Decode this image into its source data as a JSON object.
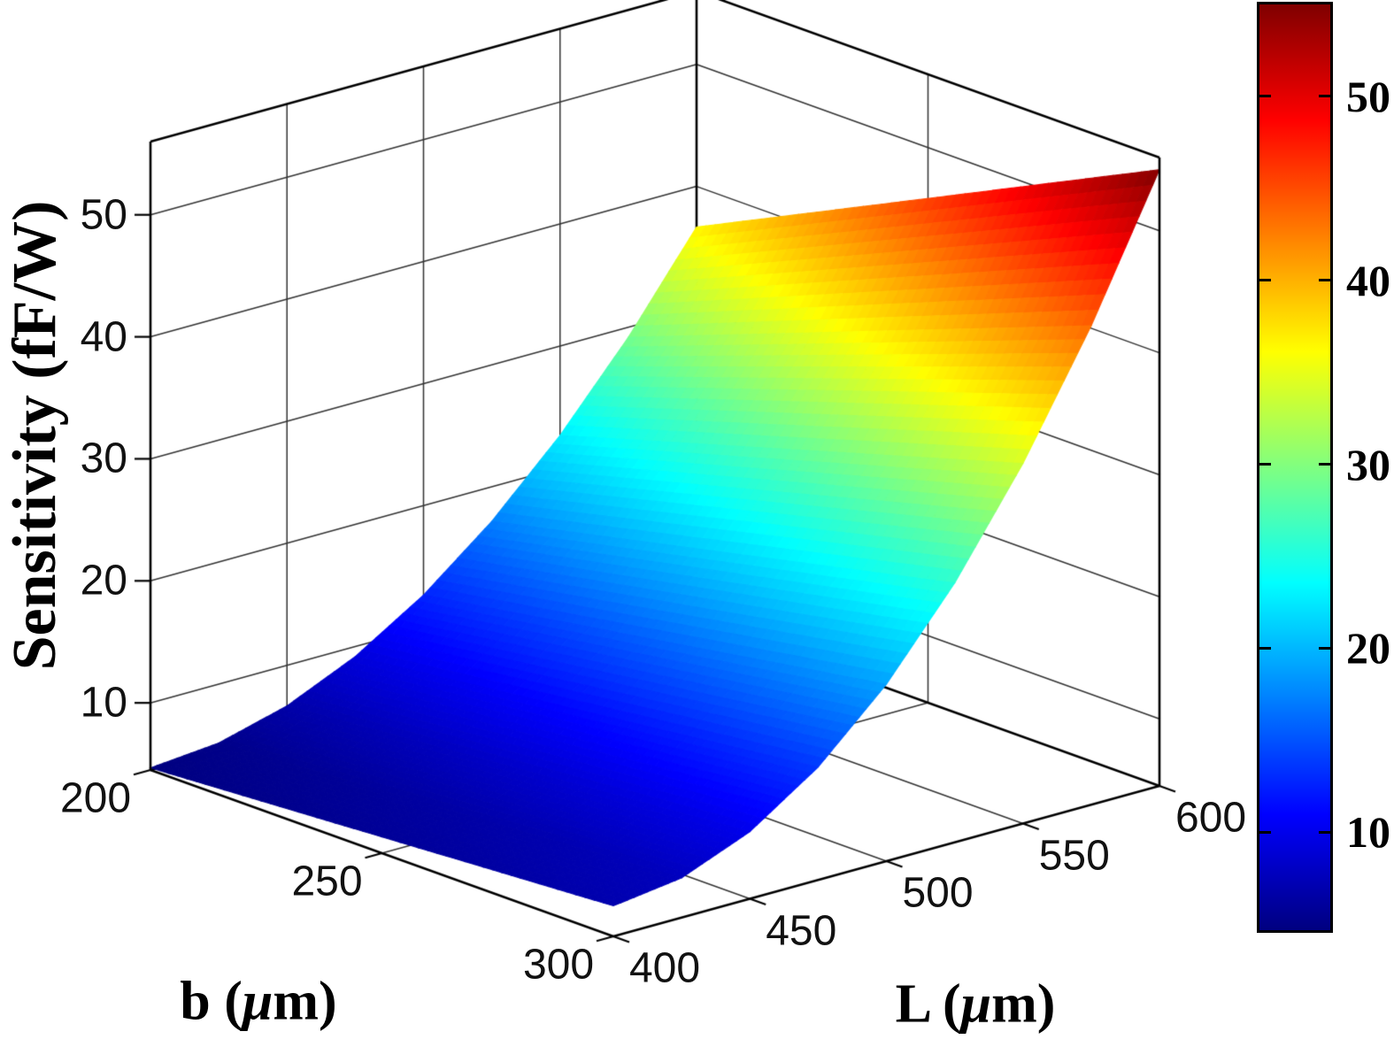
{
  "chart_data": {
    "type": "surface",
    "xlabel": "L (μm)",
    "ylabel": "b (μm)",
    "zlabel": "Sensitivity (fF/W)",
    "xlabel_parts": [
      "L (",
      "μ",
      "m)"
    ],
    "ylabel_parts": [
      "b (",
      "μ",
      "m)"
    ],
    "x": [
      400,
      425,
      450,
      475,
      500,
      525,
      550,
      575,
      600
    ],
    "y": [
      200,
      225,
      250,
      275,
      300
    ],
    "z_grid": [
      [
        4.67,
        5.17,
        6.67,
        9.17,
        12.67,
        17.17,
        22.67,
        29.17,
        36.67
      ],
      [
        5.25,
        5.81,
        7.5,
        10.31,
        14.25,
        19.31,
        25.5,
        32.81,
        41.25
      ],
      [
        5.83,
        6.46,
        8.33,
        11.46,
        15.83,
        21.46,
        28.33,
        36.46,
        45.83
      ],
      [
        6.42,
        7.1,
        9.17,
        12.6,
        17.42,
        23.6,
        31.17,
        40.1,
        50.42
      ],
      [
        7.0,
        7.75,
        10.0,
        13.75,
        19.0,
        25.75,
        34.0,
        43.75,
        55.0
      ]
    ],
    "x_ticks": [
      400,
      450,
      500,
      550,
      600
    ],
    "y_ticks": [
      200,
      250,
      300
    ],
    "z_ticks": [
      10,
      20,
      30,
      40,
      50
    ],
    "xlim": [
      400,
      600
    ],
    "ylim": [
      200,
      300
    ],
    "zlim": [
      4.5,
      56
    ],
    "grid": true,
    "colormap": "jet",
    "colormap_stops": [
      [
        0,
        "#000080"
      ],
      [
        0.125,
        "#0000FF"
      ],
      [
        0.25,
        "#0080FF"
      ],
      [
        0.375,
        "#00FFFF"
      ],
      [
        0.5,
        "#80FF80"
      ],
      [
        0.625,
        "#FFFF00"
      ],
      [
        0.75,
        "#FF8000"
      ],
      [
        0.875,
        "#FF0000"
      ],
      [
        1,
        "#800000"
      ]
    ],
    "colorbar": {
      "location": "right",
      "ticks": [
        10,
        20,
        30,
        40,
        50
      ]
    },
    "background": "#FFFFFF",
    "view": {
      "azimuth": -37.5,
      "elevation": 30
    }
  }
}
